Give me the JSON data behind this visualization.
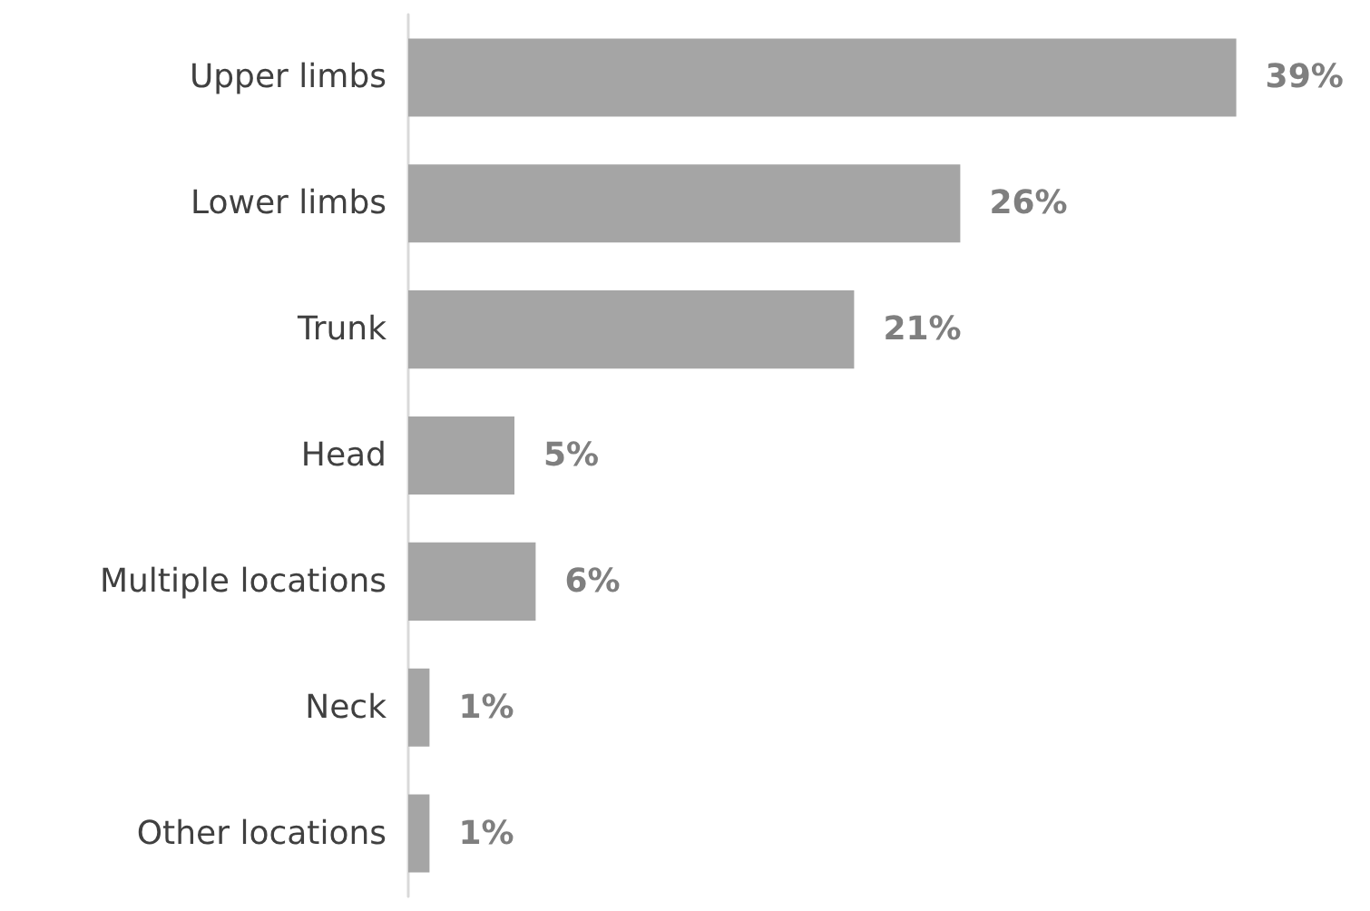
{
  "chart_data": {
    "type": "bar",
    "orientation": "horizontal",
    "categories": [
      "Upper limbs",
      "Lower limbs",
      "Trunk",
      "Head",
      "Multiple locations",
      "Neck",
      "Other locations"
    ],
    "values": [
      39,
      26,
      21,
      5,
      6,
      1,
      1
    ],
    "value_labels": [
      "39%",
      "26%",
      "21%",
      "5%",
      "6%",
      "1%",
      "1%"
    ],
    "color": "#a5a5a5",
    "tick_labels": "y"
  }
}
